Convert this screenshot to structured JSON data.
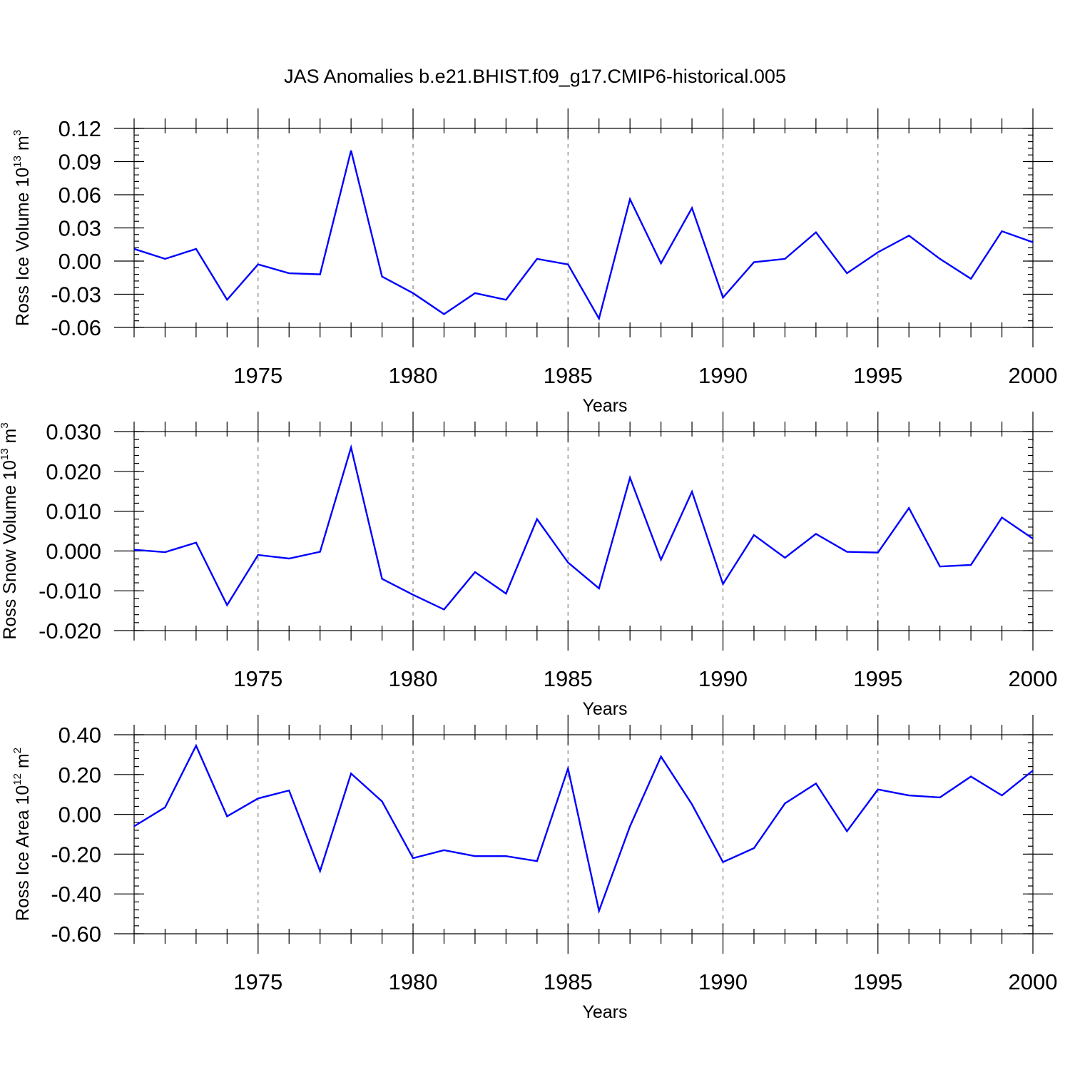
{
  "page": {
    "title": "JAS Anomalies b.e21.BHIST.f09_g17.CMIP6-historical.005"
  },
  "colors": {
    "line": "#0000ff",
    "axis": "#000000",
    "grid": "#808080"
  },
  "chart_data": [
    {
      "type": "line",
      "xlabel": "Years",
      "ylabel": {
        "base": "Ross Ice Volume 10",
        "exp": "13",
        "unit": " m",
        "unit_exp": "3"
      },
      "xlim": [
        1971,
        2000
      ],
      "ylim": [
        -0.06,
        0.12
      ],
      "yticks": [
        -0.06,
        -0.03,
        0.0,
        0.03,
        0.06,
        0.09,
        0.12
      ],
      "ytick_labels": [
        "-0.06",
        "-0.03",
        "0.00",
        "0.03",
        "0.06",
        "0.09",
        "0.12"
      ],
      "yminor_step": 0.006,
      "xticks": [
        1975,
        1980,
        1985,
        1990,
        1995,
        2000
      ],
      "xtick_labels": [
        "1975",
        "1980",
        "1985",
        "1990",
        "1995",
        "2000"
      ],
      "grid": "dashed vertical lines at major x ticks",
      "x": [
        1971,
        1972,
        1973,
        1974,
        1975,
        1976,
        1977,
        1978,
        1979,
        1980,
        1981,
        1982,
        1983,
        1984,
        1985,
        1986,
        1987,
        1988,
        1989,
        1990,
        1991,
        1992,
        1993,
        1994,
        1995,
        1996,
        1997,
        1998,
        1999,
        2000
      ],
      "series": [
        {
          "values": [
            0.011,
            0.002,
            0.011,
            -0.035,
            -0.003,
            -0.011,
            -0.012,
            0.1,
            -0.014,
            -0.029,
            -0.048,
            -0.029,
            -0.035,
            0.002,
            -0.003,
            -0.052,
            0.056,
            -0.002,
            0.048,
            -0.033,
            -0.001,
            0.002,
            0.026,
            -0.011,
            0.008,
            0.023,
            0.002,
            -0.016,
            0.027,
            0.017
          ]
        }
      ]
    },
    {
      "type": "line",
      "xlabel": "Years",
      "ylabel": {
        "base": "Ross Snow Volume 10",
        "exp": "13",
        "unit": " m",
        "unit_exp": "3"
      },
      "xlim": [
        1971,
        2000
      ],
      "ylim": [
        -0.02,
        0.03
      ],
      "yticks": [
        -0.02,
        -0.01,
        0.0,
        0.01,
        0.02,
        0.03
      ],
      "ytick_labels": [
        "-0.020",
        "-0.010",
        "0.000",
        "0.010",
        "0.020",
        "0.030"
      ],
      "yminor_step": 0.002,
      "xticks": [
        1975,
        1980,
        1985,
        1990,
        1995,
        2000
      ],
      "xtick_labels": [
        "1975",
        "1980",
        "1985",
        "1990",
        "1995",
        "2000"
      ],
      "grid": "dashed vertical lines at major x ticks",
      "x": [
        1971,
        1972,
        1973,
        1974,
        1975,
        1976,
        1977,
        1978,
        1979,
        1980,
        1981,
        1982,
        1983,
        1984,
        1985,
        1986,
        1987,
        1988,
        1989,
        1990,
        1991,
        1992,
        1993,
        1994,
        1995,
        1996,
        1997,
        1998,
        1999,
        2000
      ],
      "series": [
        {
          "values": [
            0.0003,
            -0.0003,
            0.0021,
            -0.0136,
            -0.001,
            -0.0019,
            -0.0002,
            0.026,
            -0.007,
            -0.011,
            -0.0147,
            -0.0053,
            -0.0107,
            0.008,
            -0.0029,
            -0.0094,
            0.0184,
            -0.0022,
            0.0149,
            -0.0083,
            0.004,
            -0.0017,
            0.0043,
            -0.0002,
            -0.0004,
            0.0108,
            -0.0039,
            -0.0035,
            0.0084,
            0.0031
          ]
        }
      ]
    },
    {
      "type": "line",
      "xlabel": "Years",
      "ylabel": {
        "base": "Ross Ice Area 10",
        "exp": "12",
        "unit": " m",
        "unit_exp": "2"
      },
      "xlim": [
        1971,
        2000
      ],
      "ylim": [
        -0.6,
        0.4
      ],
      "yticks": [
        -0.6,
        -0.4,
        -0.2,
        0.0,
        0.2,
        0.4
      ],
      "ytick_labels": [
        "-0.60",
        "-0.40",
        "-0.20",
        "0.00",
        "0.20",
        "0.40"
      ],
      "yminor_step": 0.04,
      "xticks": [
        1975,
        1980,
        1985,
        1990,
        1995,
        2000
      ],
      "xtick_labels": [
        "1975",
        "1980",
        "1985",
        "1990",
        "1995",
        "2000"
      ],
      "grid": "dashed vertical lines at major x ticks",
      "x": [
        1971,
        1972,
        1973,
        1974,
        1975,
        1976,
        1977,
        1978,
        1979,
        1980,
        1981,
        1982,
        1983,
        1984,
        1985,
        1986,
        1987,
        1988,
        1989,
        1990,
        1991,
        1992,
        1993,
        1994,
        1995,
        1996,
        1997,
        1998,
        1999,
        2000
      ],
      "series": [
        {
          "values": [
            -0.06,
            0.035,
            0.345,
            -0.01,
            0.08,
            0.12,
            -0.285,
            0.205,
            0.065,
            -0.22,
            -0.18,
            -0.21,
            -0.21,
            -0.235,
            0.23,
            -0.485,
            -0.06,
            0.29,
            0.05,
            -0.24,
            -0.17,
            0.055,
            0.155,
            -0.085,
            0.125,
            0.095,
            0.085,
            0.19,
            0.095,
            0.22
          ]
        }
      ]
    }
  ]
}
